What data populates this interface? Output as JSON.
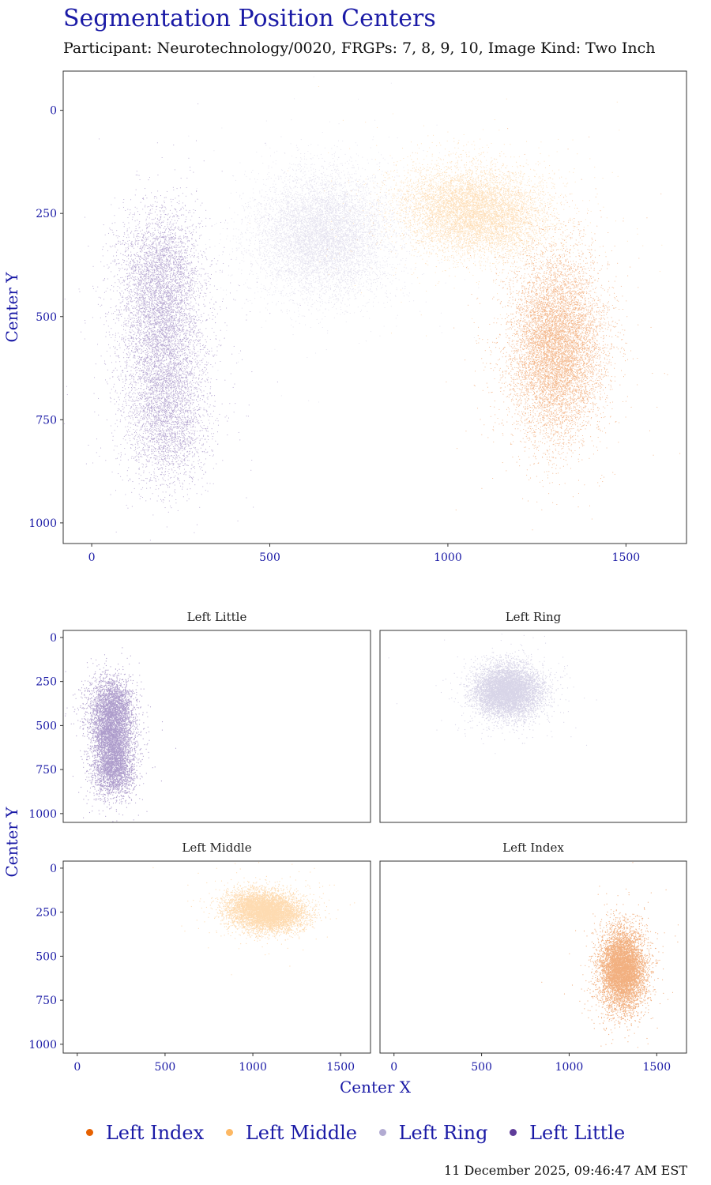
{
  "title": "Segmentation Position Centers",
  "subtitle": "Participant: Neurotechnology/0020, FRGPs: 7, 8, 9, 10, Image Kind: Two Inch",
  "timestamp": "11 December 2025, 09:46:47 AM EST",
  "chart_data": [
    {
      "type": "scatter",
      "panel": "combined",
      "title": "",
      "xlabel": "",
      "ylabel": "Center Y",
      "xlim": [
        -80,
        1670
      ],
      "ylim": [
        -95,
        1050
      ],
      "y_reversed": true,
      "xticks": [
        0,
        500,
        1000,
        1500
      ],
      "yticks": [
        0,
        250,
        500,
        750,
        1000
      ],
      "grid": false,
      "series": [
        {
          "name": "Left Little",
          "color": "#5e3c99",
          "centers": [
            [
              210,
              745
            ],
            [
              200,
              560
            ],
            [
              195,
              390
            ]
          ],
          "spread_x": 70,
          "spread_y": 95,
          "estimated_points": 9000
        },
        {
          "name": "Left Ring",
          "color": "#b2abd2",
          "centers": [
            [
              650,
              305
            ]
          ],
          "spread_x": 95,
          "spread_y": 75,
          "estimated_points": 8000
        },
        {
          "name": "Left Middle",
          "color": "#fdb863",
          "centers": [
            [
              1030,
              225
            ],
            [
              1120,
              265
            ]
          ],
          "spread_x": 110,
          "spread_y": 60,
          "estimated_points": 8000
        },
        {
          "name": "Left Index",
          "color": "#e66101",
          "centers": [
            [
              1305,
              575
            ]
          ],
          "spread_x": 65,
          "spread_y": 110,
          "estimated_points": 9000
        }
      ]
    },
    {
      "type": "scatter",
      "panel": "facet",
      "title": "Left Little",
      "xlim": [
        -80,
        1670
      ],
      "ylim": [
        -40,
        1050
      ],
      "y_reversed": true,
      "xticks": [
        0,
        500,
        1000,
        1500
      ],
      "yticks": [
        0,
        250,
        500,
        750,
        1000
      ],
      "show_x_ticks": false,
      "show_y_ticks": true,
      "series": [
        {
          "name": "Left Little",
          "color": "#5e3c99",
          "centers": [
            [
              210,
              745
            ],
            [
              200,
              560
            ],
            [
              195,
              390
            ]
          ],
          "spread_x": 70,
          "spread_y": 95,
          "estimated_points": 7000
        }
      ]
    },
    {
      "type": "scatter",
      "panel": "facet",
      "title": "Left Ring",
      "xlim": [
        -80,
        1670
      ],
      "ylim": [
        -40,
        1050
      ],
      "y_reversed": true,
      "xticks": [
        0,
        500,
        1000,
        1500
      ],
      "yticks": [
        0,
        250,
        500,
        750,
        1000
      ],
      "show_x_ticks": false,
      "show_y_ticks": false,
      "series": [
        {
          "name": "Left Ring",
          "color": "#b2abd2",
          "centers": [
            [
              650,
              305
            ]
          ],
          "spread_x": 95,
          "spread_y": 75,
          "estimated_points": 7000
        }
      ]
    },
    {
      "type": "scatter",
      "panel": "facet",
      "title": "Left Middle",
      "xlim": [
        -80,
        1670
      ],
      "ylim": [
        -40,
        1050
      ],
      "y_reversed": true,
      "xticks": [
        0,
        500,
        1000,
        1500
      ],
      "yticks": [
        0,
        250,
        500,
        750,
        1000
      ],
      "show_x_ticks": true,
      "show_y_ticks": true,
      "series": [
        {
          "name": "Left Middle",
          "color": "#fdb863",
          "centers": [
            [
              1030,
              225
            ],
            [
              1120,
              265
            ]
          ],
          "spread_x": 110,
          "spread_y": 60,
          "estimated_points": 7000
        }
      ]
    },
    {
      "type": "scatter",
      "panel": "facet",
      "title": "Left Index",
      "xlim": [
        -80,
        1670
      ],
      "ylim": [
        -40,
        1050
      ],
      "y_reversed": true,
      "xticks": [
        0,
        500,
        1000,
        1500
      ],
      "yticks": [
        0,
        250,
        500,
        750,
        1000
      ],
      "show_x_ticks": true,
      "show_y_ticks": false,
      "series": [
        {
          "name": "Left Index",
          "color": "#e66101",
          "centers": [
            [
              1305,
              575
            ]
          ],
          "spread_x": 65,
          "spread_y": 110,
          "estimated_points": 7000
        }
      ]
    }
  ],
  "facet_axis_labels": {
    "x": "Center X",
    "y": "Center Y"
  },
  "legend": {
    "position": "bottom",
    "items": [
      {
        "label": "Left Index",
        "color": "#e66101"
      },
      {
        "label": "Left Middle",
        "color": "#fdb863"
      },
      {
        "label": "Left Ring",
        "color": "#b2abd2"
      },
      {
        "label": "Left Little",
        "color": "#5e3c99"
      }
    ]
  }
}
